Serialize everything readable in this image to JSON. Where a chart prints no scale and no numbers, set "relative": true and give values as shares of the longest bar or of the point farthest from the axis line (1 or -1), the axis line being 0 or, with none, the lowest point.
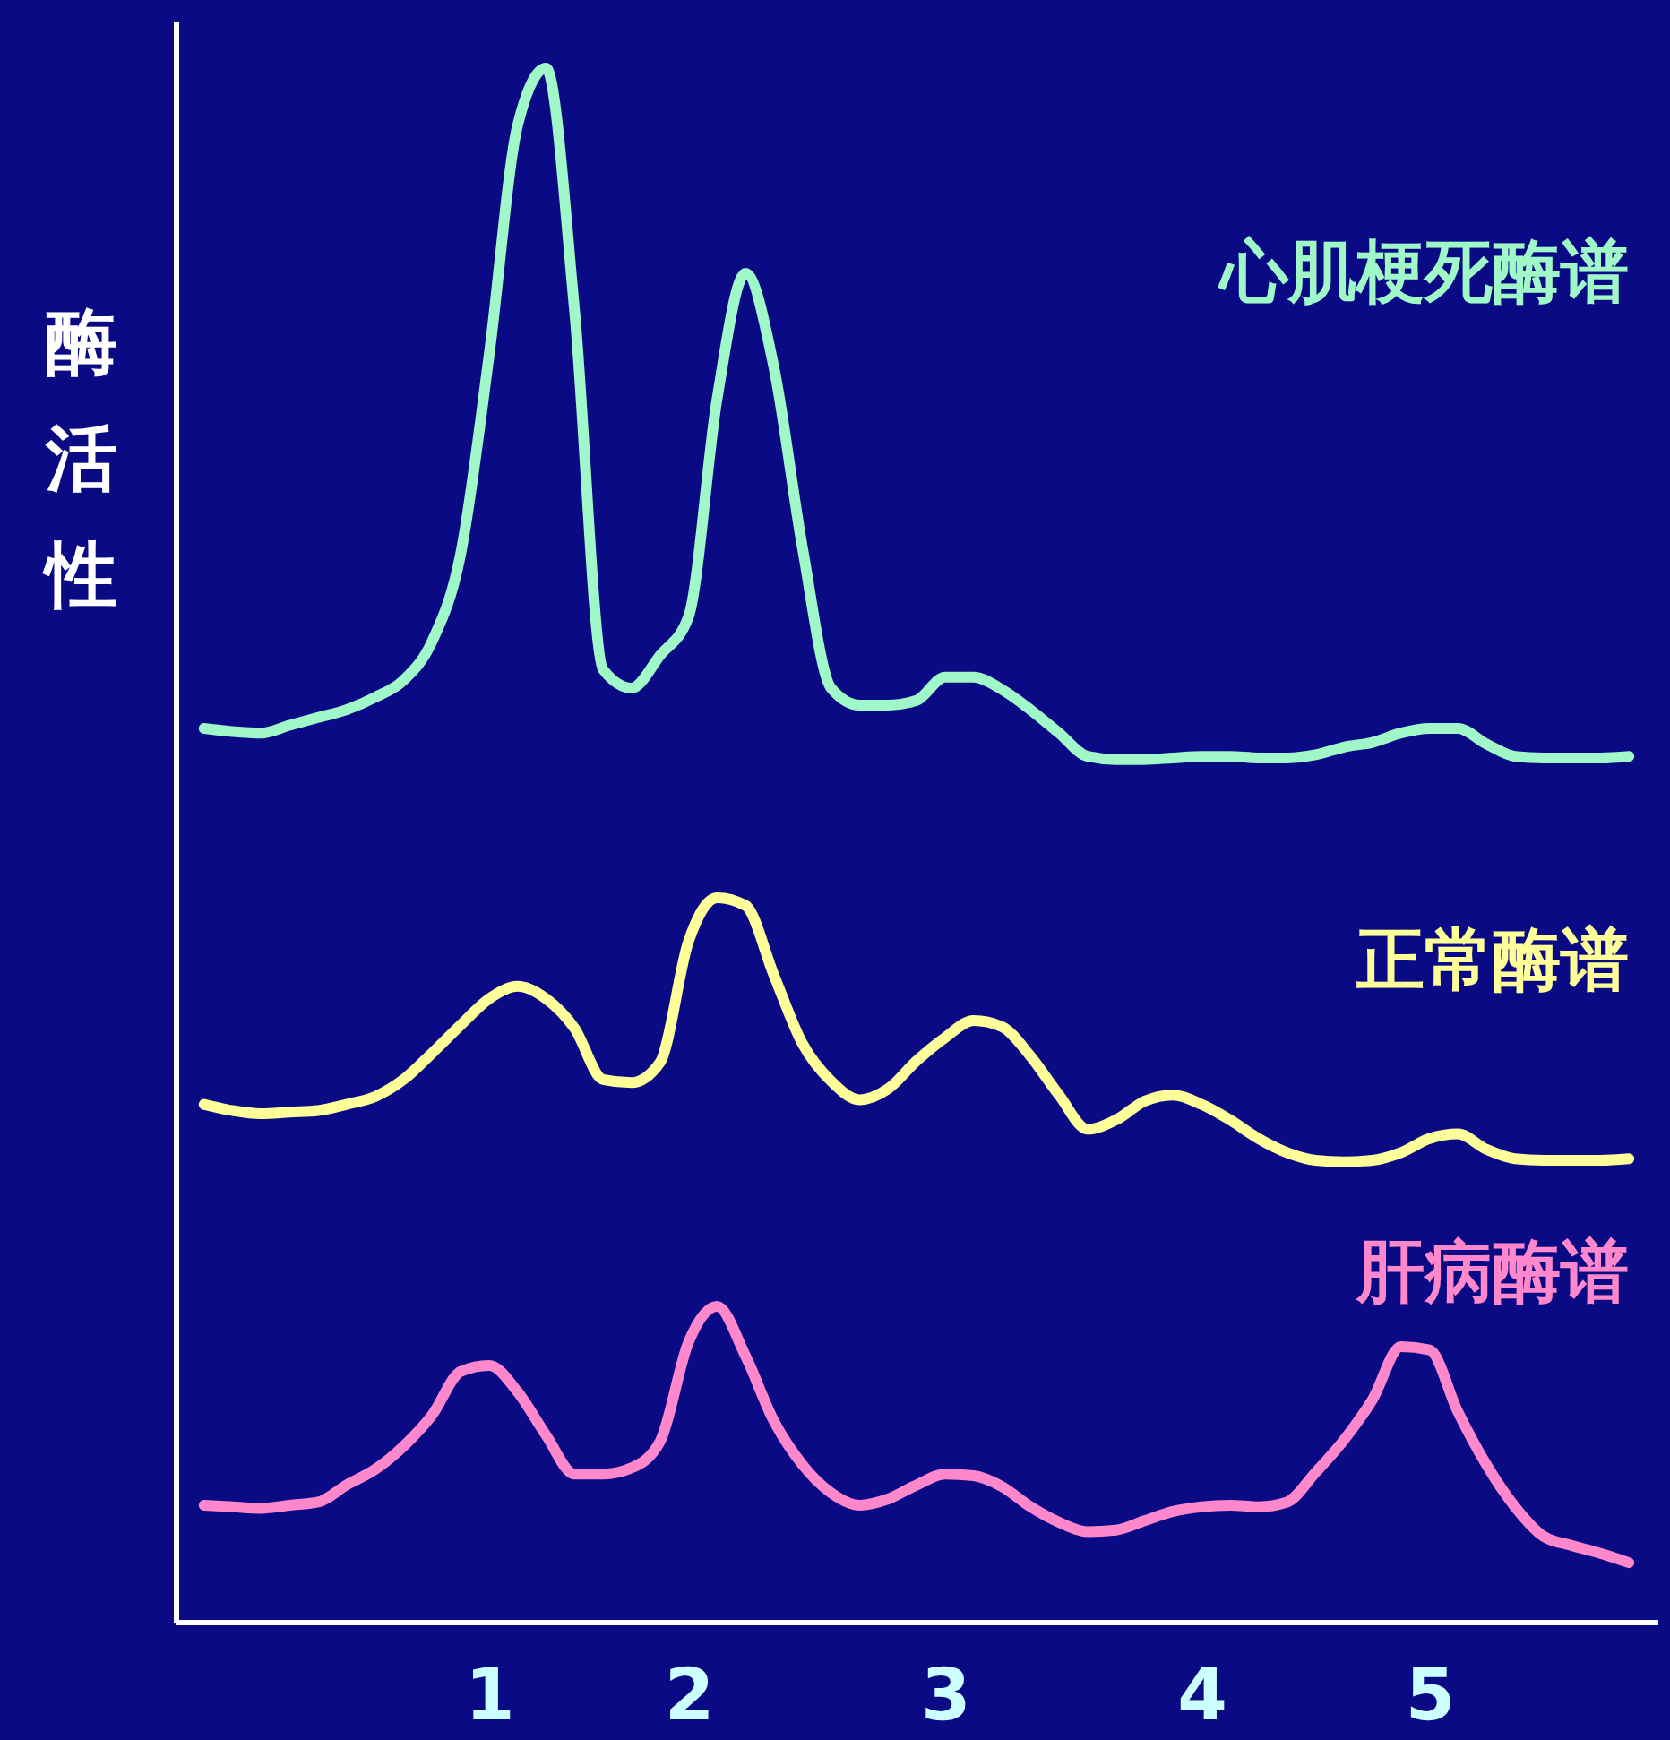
{
  "chart_data": {
    "type": "line",
    "relative": true,
    "ylabel": "酶活性",
    "categories": [
      null,
      null,
      null,
      null,
      null,
      null,
      null,
      null,
      null,
      null,
      "1",
      null,
      null,
      null,
      null,
      null,
      null,
      "2",
      null,
      null,
      null,
      null,
      null,
      null,
      null,
      null,
      "3",
      null,
      null,
      null,
      null,
      null,
      null,
      null,
      null,
      "4",
      null,
      null,
      null,
      null,
      null,
      null,
      null,
      "5",
      null,
      null,
      null,
      null,
      null,
      null,
      null
    ],
    "series": [
      {
        "name": "心肌梗死酶谱",
        "color": "#a0f8c8",
        "values": [
          0.575,
          0.573,
          0.572,
          0.577,
          0.582,
          0.587,
          0.595,
          0.606,
          0.631,
          0.687,
          0.815,
          0.963,
          1.0,
          0.844,
          0.613,
          0.601,
          0.622,
          0.647,
          0.787,
          0.868,
          0.807,
          0.691,
          0.601,
          0.59,
          0.59,
          0.593,
          0.608,
          0.608,
          0.6,
          0.587,
          0.572,
          0.557,
          0.555,
          0.555,
          0.556,
          0.557,
          0.557,
          0.556,
          0.556,
          0.558,
          0.563,
          0.566,
          0.572,
          0.575,
          0.575,
          0.565,
          0.557,
          0.556,
          0.556,
          0.556,
          0.557
        ]
      },
      {
        "name": "正常酶谱",
        "color": "#ffff99",
        "values": [
          0.333,
          0.329,
          0.327,
          0.328,
          0.329,
          0.333,
          0.338,
          0.349,
          0.366,
          0.384,
          0.401,
          0.409,
          0.401,
          0.382,
          0.349,
          0.347,
          0.36,
          0.438,
          0.466,
          0.461,
          0.416,
          0.372,
          0.348,
          0.336,
          0.343,
          0.361,
          0.376,
          0.387,
          0.383,
          0.364,
          0.339,
          0.317,
          0.323,
          0.335,
          0.339,
          0.333,
          0.323,
          0.311,
          0.302,
          0.297,
          0.296,
          0.297,
          0.302,
          0.311,
          0.314,
          0.304,
          0.298,
          0.297,
          0.297,
          0.297,
          0.298
        ]
      },
      {
        "name": "肝病酶谱",
        "color": "#ff88cc",
        "values": [
          0.075,
          0.074,
          0.073,
          0.075,
          0.077,
          0.088,
          0.098,
          0.113,
          0.133,
          0.161,
          0.165,
          0.148,
          0.12,
          0.095,
          0.095,
          0.099,
          0.116,
          0.18,
          0.203,
          0.171,
          0.129,
          0.101,
          0.083,
          0.075,
          0.079,
          0.088,
          0.095,
          0.094,
          0.087,
          0.074,
          0.064,
          0.058,
          0.059,
          0.065,
          0.071,
          0.074,
          0.075,
          0.074,
          0.077,
          0.096,
          0.117,
          0.143,
          0.177,
          0.175,
          0.135,
          0.101,
          0.074,
          0.055,
          0.049,
          0.044,
          0.038
        ]
      }
    ]
  }
}
